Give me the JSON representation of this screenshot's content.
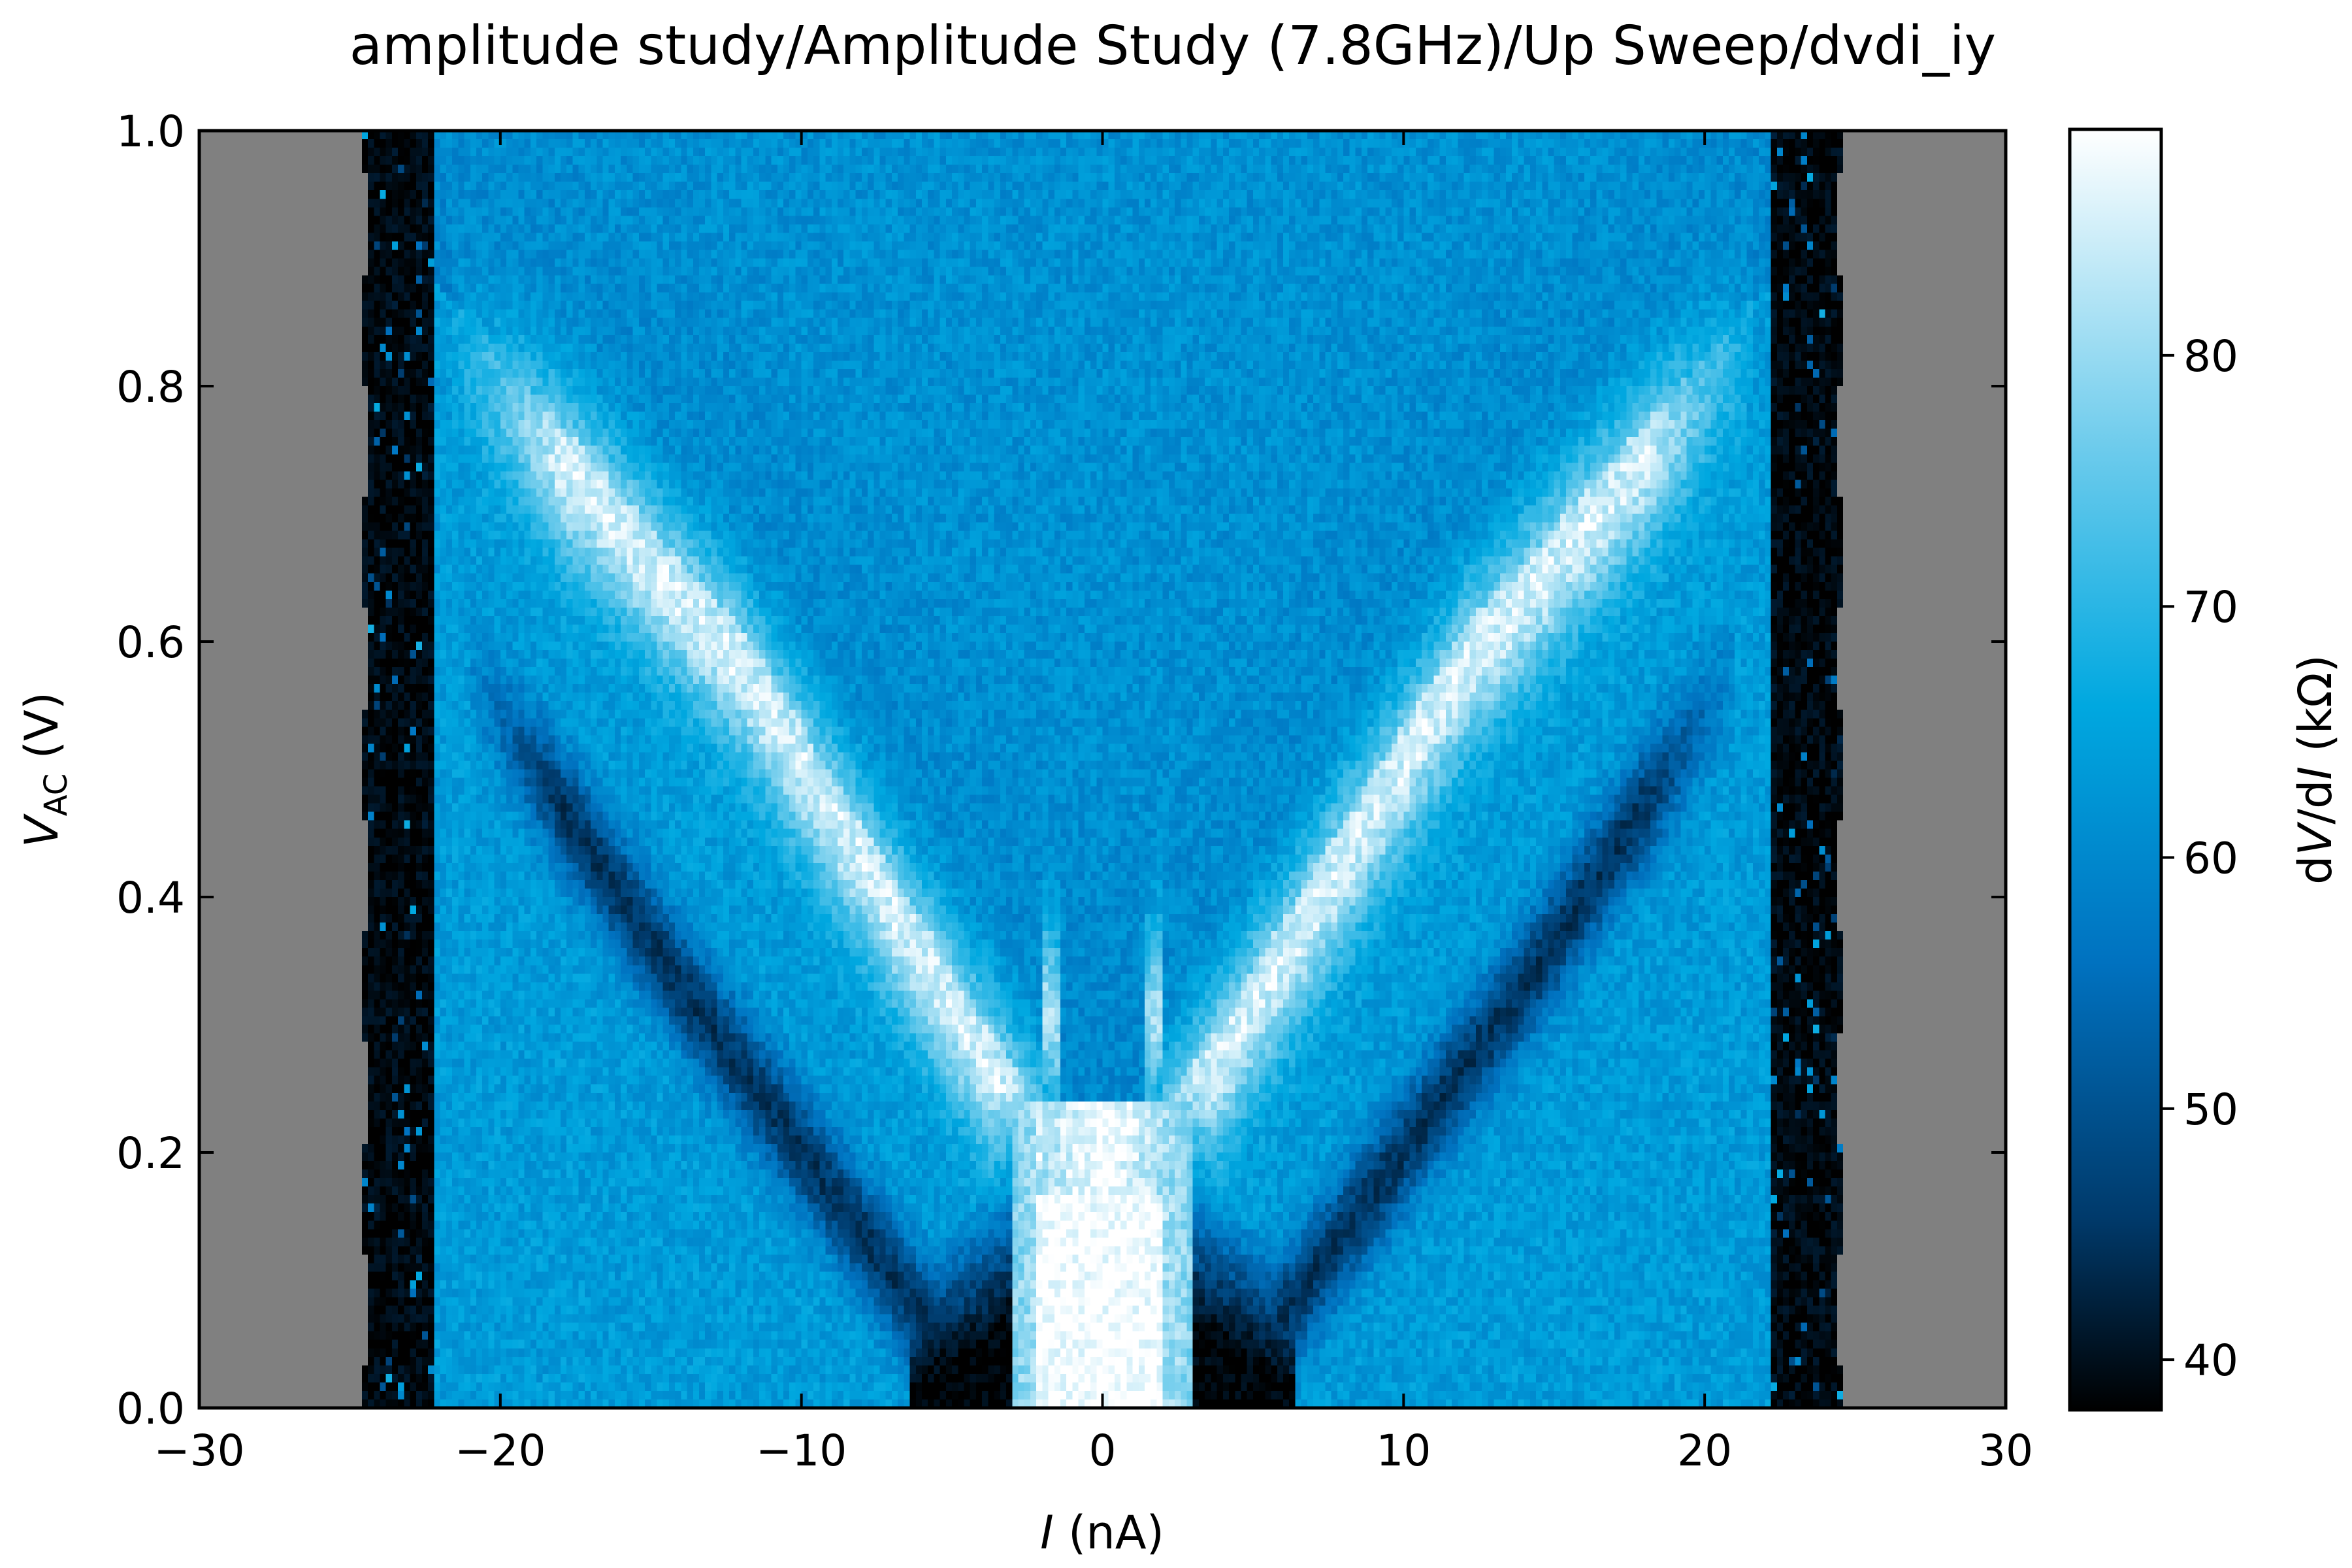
{
  "title": "amplitude study/Amplitude Study (7.8GHz)/Up Sweep/dvdi_iy",
  "chart_data": {
    "type": "heatmap",
    "title": "amplitude study/Amplitude Study (7.8GHz)/Up Sweep/dvdi_iy",
    "xlabel": {
      "var": "I",
      "unit": " (nA)"
    },
    "ylabel": {
      "var": "V",
      "sub": "AC",
      "unit": " (V)"
    },
    "colorbar_label": {
      "pre": "d",
      "v": "V",
      "mid": "/d",
      "i": "I",
      "unit": " (kΩ)"
    },
    "xlim": [
      -30,
      30
    ],
    "ylim": [
      0,
      1
    ],
    "clim": [
      38,
      89
    ],
    "xticks": [
      -30,
      -20,
      -10,
      0,
      10,
      20,
      30
    ],
    "xtick_labels": [
      "−30",
      "−20",
      "−10",
      "0",
      "10",
      "20",
      "30"
    ],
    "yticks": [
      0.0,
      0.2,
      0.4,
      0.6,
      0.8,
      1.0
    ],
    "ytick_labels": [
      "0.0",
      "0.2",
      "0.4",
      "0.6",
      "0.8",
      "1.0"
    ],
    "cbar_ticks": [
      40,
      50,
      60,
      70,
      80
    ],
    "cbar_tick_labels": [
      "40",
      "50",
      "60",
      "70",
      "80"
    ],
    "colormap": [
      "#000000",
      "#003a6b",
      "#0072c0",
      "#00a8e0",
      "#6ccbec",
      "#ffffff"
    ],
    "nan_color": "#808080",
    "data_x_range": [
      -24.5,
      24.5
    ],
    "background_value": 66,
    "features": {
      "edge_dark_band": {
        "x_inner": 22.3,
        "x_outer": 24.5,
        "value": 39
      },
      "central_peak": {
        "x_halfwidth": 2.1,
        "v_max": 0.17,
        "value": 89
      },
      "zero_bias_dips": {
        "x_from": 2.1,
        "x_to": 5.5,
        "v_max": 0.08,
        "value": 38
      },
      "bright_branches": [
        {
          "name": "left",
          "points": [
            [
              -2,
              0.2
            ],
            [
              -12,
              0.6
            ],
            [
              -21,
              0.82
            ]
          ],
          "value": 86
        },
        {
          "name": "right",
          "points": [
            [
              2,
              0.2
            ],
            [
              12,
              0.58
            ],
            [
              21,
              0.82
            ]
          ],
          "value": 86
        }
      ],
      "dark_branches": [
        {
          "name": "left",
          "points": [
            [
              -5,
              0.04
            ],
            [
              -14,
              0.35
            ],
            [
              -21,
              0.58
            ]
          ],
          "value": 47
        },
        {
          "name": "right",
          "points": [
            [
              5,
              0.04
            ],
            [
              14,
              0.33
            ],
            [
              20,
              0.54
            ]
          ],
          "value": 47
        }
      ],
      "inner_dip_region": {
        "apex": [
          0,
          0.2
        ],
        "value": 62
      }
    }
  }
}
